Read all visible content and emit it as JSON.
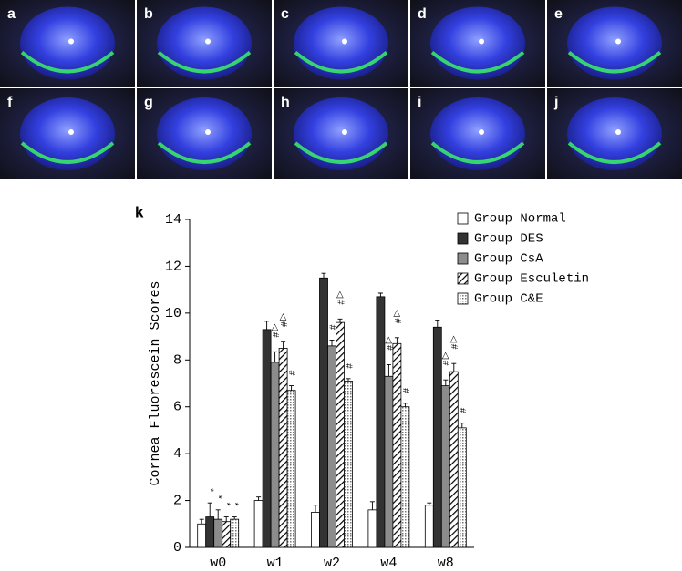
{
  "panels": [
    {
      "label": "a"
    },
    {
      "label": "b"
    },
    {
      "label": "c"
    },
    {
      "label": "d"
    },
    {
      "label": "e"
    },
    {
      "label": "f"
    },
    {
      "label": "g"
    },
    {
      "label": "h"
    },
    {
      "label": "i"
    },
    {
      "label": "j"
    }
  ],
  "chart_data": {
    "type": "bar",
    "panel_label": "k",
    "y_label": "Cornea Fluorescein Scores",
    "categories": [
      "w0",
      "w1",
      "w2",
      "w4",
      "w8"
    ],
    "ylim": [
      0,
      14
    ],
    "yticks": [
      0,
      2,
      4,
      6,
      8,
      10,
      12,
      14
    ],
    "legend": "top-right",
    "series": [
      {
        "name": "Group Normal",
        "color": "#ffffff",
        "values": [
          1.0,
          2.0,
          1.5,
          1.6,
          1.8
        ],
        "errors": [
          0.2,
          0.15,
          0.3,
          0.35,
          0.1
        ],
        "annotations": [
          null,
          null,
          null,
          null,
          null
        ]
      },
      {
        "name": "Group DES",
        "color": "#333333",
        "values": [
          1.3,
          9.3,
          11.5,
          10.7,
          9.4
        ],
        "errors": [
          0.6,
          0.35,
          0.2,
          0.15,
          0.3
        ],
        "annotations": [
          "*",
          null,
          null,
          null,
          null
        ]
      },
      {
        "name": "Group CsA",
        "color": "#8c8c8c",
        "values": [
          1.2,
          7.9,
          8.6,
          7.3,
          6.9
        ],
        "errors": [
          0.4,
          0.45,
          0.25,
          0.5,
          0.25
        ],
        "annotations": [
          "*",
          "△#",
          "#",
          "△#",
          "△#"
        ]
      },
      {
        "name": "Group Esculetin",
        "color": "#000000",
        "hatch": "diagonal",
        "values": [
          1.1,
          8.5,
          9.6,
          8.7,
          7.5
        ],
        "errors": [
          0.2,
          0.3,
          0.15,
          0.25,
          0.35
        ],
        "annotations": [
          "*",
          "△#",
          "△#",
          "△#",
          "△#"
        ]
      },
      {
        "name": "Group C&E",
        "color": "#777777",
        "hatch": "dots",
        "values": [
          1.2,
          6.7,
          7.1,
          6.0,
          5.1
        ],
        "errors": [
          0.1,
          0.2,
          0.1,
          0.15,
          0.2
        ],
        "annotations": [
          "*",
          "#",
          "#",
          "#",
          "#"
        ]
      }
    ]
  }
}
